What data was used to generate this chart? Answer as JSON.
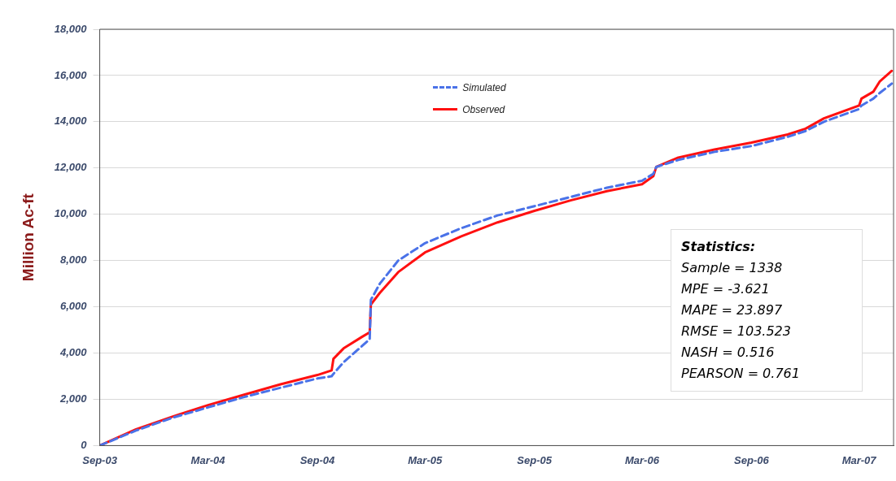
{
  "chart_data": {
    "type": "line",
    "ylabel": "Million Ac-ft",
    "x": [
      "2003-09-01",
      "2003-11-01",
      "2004-01-01",
      "2004-03-01",
      "2004-05-01",
      "2004-07-01",
      "2004-09-01",
      "2004-09-25",
      "2004-09-28",
      "2004-10-15",
      "2004-11-15",
      "2004-11-28",
      "2004-11-30",
      "2004-12-15",
      "2005-01-15",
      "2005-03-01",
      "2005-05-01",
      "2005-07-01",
      "2005-09-01",
      "2005-11-01",
      "2006-01-01",
      "2006-03-01",
      "2006-03-20",
      "2006-03-25",
      "2006-05-01",
      "2006-07-01",
      "2006-09-01",
      "2006-11-01",
      "2006-12-01",
      "2007-01-01",
      "2007-03-01",
      "2007-03-05",
      "2007-03-25",
      "2007-04-05",
      "2007-04-25"
    ],
    "series": [
      {
        "name": "Simulated",
        "color": "#4a72e8",
        "line_style": "dashed",
        "values": [
          0,
          650,
          1200,
          1650,
          2100,
          2500,
          2900,
          3000,
          3100,
          3600,
          4300,
          4600,
          6300,
          7000,
          8000,
          8750,
          9400,
          9950,
          10350,
          10750,
          11150,
          11450,
          11750,
          12050,
          12350,
          12700,
          12950,
          13350,
          13600,
          14000,
          14550,
          14700,
          15000,
          15250,
          15650
        ]
      },
      {
        "name": "Observed",
        "color": "#ff1010",
        "line_style": "solid",
        "values": [
          0,
          700,
          1250,
          1750,
          2200,
          2650,
          3050,
          3250,
          3750,
          4200,
          4700,
          4900,
          6100,
          6600,
          7500,
          8350,
          9050,
          9650,
          10150,
          10600,
          11000,
          11300,
          11650,
          12050,
          12450,
          12800,
          13100,
          13450,
          13700,
          14150,
          14700,
          15000,
          15300,
          15750,
          16200
        ]
      }
    ],
    "xlim": [
      "2003-09-01",
      "2007-04-28"
    ],
    "xticks": [
      {
        "value": "2003-09-01",
        "label": "Sep-03"
      },
      {
        "value": "2004-03-01",
        "label": "Mar-04"
      },
      {
        "value": "2004-09-01",
        "label": "Sep-04"
      },
      {
        "value": "2005-03-01",
        "label": "Mar-05"
      },
      {
        "value": "2005-09-01",
        "label": "Sep-05"
      },
      {
        "value": "2006-03-01",
        "label": "Mar-06"
      },
      {
        "value": "2006-09-01",
        "label": "Sep-06"
      },
      {
        "value": "2007-03-01",
        "label": "Mar-07"
      }
    ],
    "ylim": [
      0,
      18000
    ],
    "yticks": [
      {
        "value": 0,
        "label": "0"
      },
      {
        "value": 2000,
        "label": "2,000"
      },
      {
        "value": 4000,
        "label": "4,000"
      },
      {
        "value": 6000,
        "label": "6,000"
      },
      {
        "value": 8000,
        "label": "8,000"
      },
      {
        "value": 10000,
        "label": "10,000"
      },
      {
        "value": 12000,
        "label": "12,000"
      },
      {
        "value": 14000,
        "label": "14,000"
      },
      {
        "value": 16000,
        "label": "16,000"
      },
      {
        "value": 18000,
        "label": "18,000"
      }
    ],
    "grid": "y",
    "legend": "top center",
    "marker": "none",
    "annotations": [
      "Statistics:",
      "Sample = 1338",
      "MPE = -3.621",
      "MAPE = 23.897",
      "RMSE = 103.523",
      "NASH = 0.516",
      "PEARSON = 0.761"
    ]
  }
}
